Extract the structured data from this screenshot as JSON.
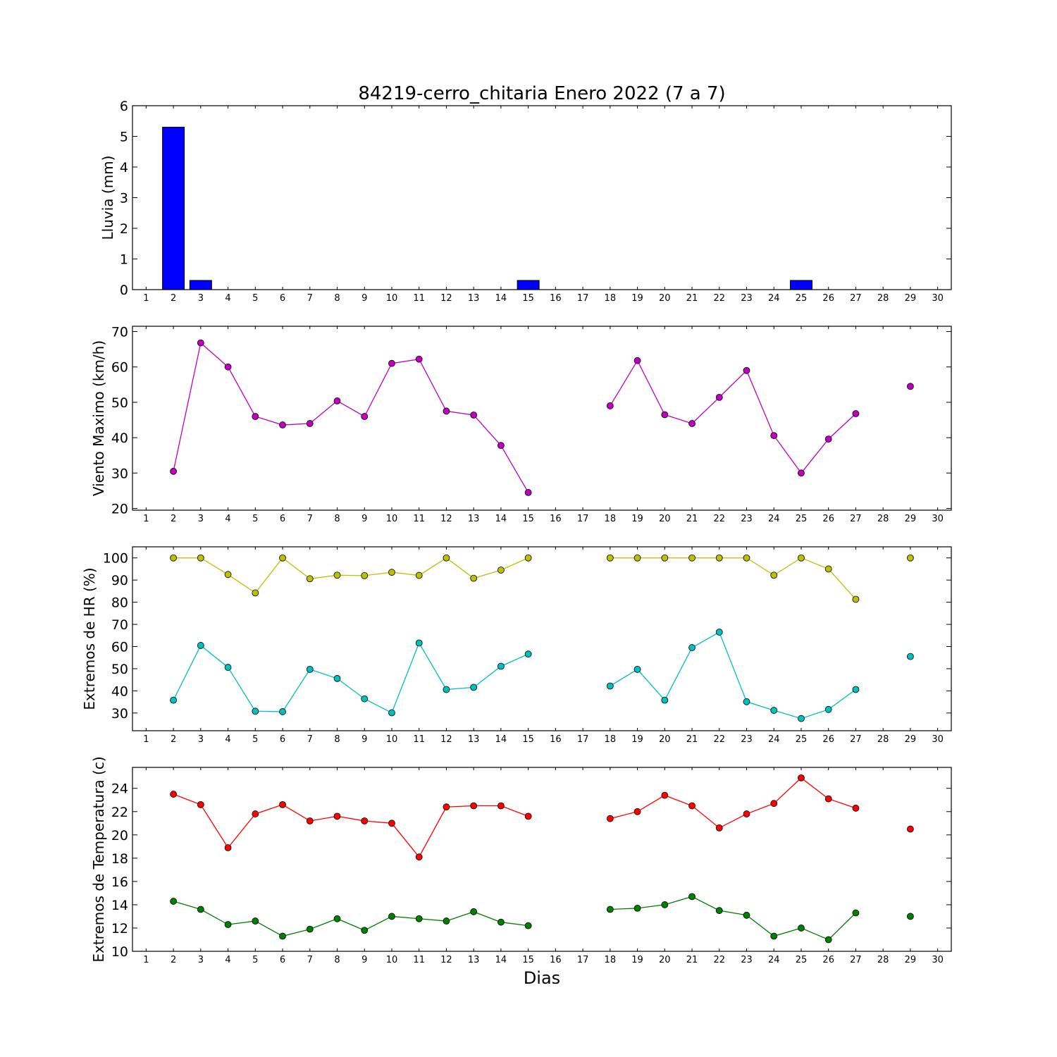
{
  "title": "84219-cerro_chitaria Enero 2022  (7 a 7)",
  "xlabel": "Dias",
  "chart_data": [
    {
      "type": "bar",
      "ylabel": "Lluvia (mm)",
      "xlim": [
        0.5,
        30.5
      ],
      "ylim": [
        0,
        6
      ],
      "yticks": [
        0,
        1,
        2,
        3,
        4,
        5,
        6
      ],
      "xticks": [
        1,
        2,
        3,
        4,
        5,
        6,
        7,
        8,
        9,
        10,
        11,
        12,
        13,
        14,
        15,
        16,
        17,
        18,
        19,
        20,
        21,
        22,
        23,
        24,
        25,
        26,
        27,
        28,
        29,
        30
      ],
      "grid": false,
      "series": [
        {
          "color": "#0000ff",
          "x": [
            2,
            3,
            4,
            5,
            6,
            7,
            8,
            9,
            10,
            11,
            12,
            13,
            14,
            15,
            16,
            17,
            18,
            19,
            20,
            21,
            22,
            23,
            24,
            25,
            26,
            27,
            28,
            29
          ],
          "values": [
            5.3,
            0.3,
            0,
            0,
            0,
            0,
            0,
            0,
            0,
            0,
            0,
            0,
            0,
            0.3,
            0,
            0,
            0,
            0,
            0,
            0,
            0,
            0,
            0,
            0.3,
            0,
            0,
            0,
            0
          ]
        }
      ]
    },
    {
      "type": "line",
      "ylabel": "Viento Maximo (km/h)",
      "xlim": [
        0.5,
        30.5
      ],
      "ylim": [
        19.5,
        71.5
      ],
      "yticks": [
        20,
        30,
        40,
        50,
        60,
        70
      ],
      "xticks": [
        1,
        2,
        3,
        4,
        5,
        6,
        7,
        8,
        9,
        10,
        11,
        12,
        13,
        14,
        15,
        16,
        17,
        18,
        19,
        20,
        21,
        22,
        23,
        24,
        25,
        26,
        27,
        28,
        29,
        30
      ],
      "grid": false,
      "series": [
        {
          "color": "#bf00bf",
          "x": [
            1,
            2,
            3,
            4,
            5,
            6,
            7,
            8,
            9,
            10,
            11,
            12,
            13,
            14,
            15,
            16,
            17,
            18,
            19,
            20,
            21,
            22,
            23,
            24,
            25,
            26,
            27,
            28,
            29,
            30
          ],
          "values": [
            null,
            30.5,
            66.8,
            60,
            46,
            43.6,
            44,
            50.4,
            46,
            61,
            62.2,
            47.5,
            46.4,
            37.8,
            24.5,
            null,
            null,
            49,
            61.8,
            46.5,
            44,
            51.4,
            59,
            40.6,
            30,
            39.6,
            46.8,
            null,
            54.5,
            null
          ]
        }
      ]
    },
    {
      "type": "line",
      "ylabel": "Extremos de HR (%)",
      "xlim": [
        0.5,
        30.5
      ],
      "ylim": [
        22,
        105
      ],
      "yticks": [
        30,
        40,
        50,
        60,
        70,
        80,
        90,
        100
      ],
      "xticks": [
        1,
        2,
        3,
        4,
        5,
        6,
        7,
        8,
        9,
        10,
        11,
        12,
        13,
        14,
        15,
        16,
        17,
        18,
        19,
        20,
        21,
        22,
        23,
        24,
        25,
        26,
        27,
        28,
        29,
        30
      ],
      "grid": false,
      "series": [
        {
          "color": "#bfbf00",
          "x": [
            1,
            2,
            3,
            4,
            5,
            6,
            7,
            8,
            9,
            10,
            11,
            12,
            13,
            14,
            15,
            16,
            17,
            18,
            19,
            20,
            21,
            22,
            23,
            24,
            25,
            26,
            27,
            28,
            29,
            30
          ],
          "values": [
            null,
            100,
            100,
            92.5,
            84.2,
            100,
            90.6,
            92.2,
            92,
            93.5,
            92.1,
            100,
            90.8,
            94.5,
            100,
            null,
            null,
            100,
            100,
            100,
            100,
            100,
            100,
            92.2,
            100,
            95,
            81.3,
            null,
            100,
            null
          ]
        },
        {
          "color": "#00bfbf",
          "x": [
            1,
            2,
            3,
            4,
            5,
            6,
            7,
            8,
            9,
            10,
            11,
            12,
            13,
            14,
            15,
            16,
            17,
            18,
            19,
            20,
            21,
            22,
            23,
            24,
            25,
            26,
            27,
            28,
            29,
            30
          ],
          "values": [
            null,
            35.8,
            60.5,
            50.6,
            30.8,
            30.6,
            49.7,
            45.6,
            36.4,
            30.1,
            61.6,
            40.6,
            41.6,
            51.1,
            56.6,
            null,
            null,
            42.2,
            49.7,
            35.8,
            59.5,
            66.5,
            35.1,
            31.2,
            27.5,
            31.6,
            40.6,
            null,
            55.5,
            null
          ]
        }
      ]
    },
    {
      "type": "line",
      "ylabel": "Extremos de Temperatura (c)",
      "xlim": [
        0.5,
        30.5
      ],
      "ylim": [
        10,
        25.8
      ],
      "yticks": [
        10,
        12,
        14,
        16,
        18,
        20,
        22,
        24
      ],
      "xticks": [
        1,
        2,
        3,
        4,
        5,
        6,
        7,
        8,
        9,
        10,
        11,
        12,
        13,
        14,
        15,
        16,
        17,
        18,
        19,
        20,
        21,
        22,
        23,
        24,
        25,
        26,
        27,
        28,
        29,
        30
      ],
      "grid": false,
      "series": [
        {
          "color": "#ff0000",
          "x": [
            1,
            2,
            3,
            4,
            5,
            6,
            7,
            8,
            9,
            10,
            11,
            12,
            13,
            14,
            15,
            16,
            17,
            18,
            19,
            20,
            21,
            22,
            23,
            24,
            25,
            26,
            27,
            28,
            29,
            30
          ],
          "values": [
            null,
            23.5,
            22.6,
            18.9,
            21.8,
            22.6,
            21.2,
            21.6,
            21.2,
            21,
            18.1,
            22.4,
            22.5,
            22.5,
            21.6,
            null,
            null,
            21.4,
            22,
            23.4,
            22.5,
            20.6,
            21.8,
            22.7,
            24.9,
            23.1,
            22.3,
            null,
            20.5,
            null
          ]
        },
        {
          "color": "#008000",
          "x": [
            1,
            2,
            3,
            4,
            5,
            6,
            7,
            8,
            9,
            10,
            11,
            12,
            13,
            14,
            15,
            16,
            17,
            18,
            19,
            20,
            21,
            22,
            23,
            24,
            25,
            26,
            27,
            28,
            29,
            30
          ],
          "values": [
            null,
            14.3,
            13.6,
            12.3,
            12.6,
            11.3,
            11.9,
            12.8,
            11.8,
            13,
            12.8,
            12.6,
            13.4,
            12.5,
            12.2,
            null,
            null,
            13.6,
            13.7,
            14,
            14.7,
            13.5,
            13.1,
            11.3,
            12,
            11,
            13.3,
            null,
            13,
            null
          ]
        }
      ]
    }
  ]
}
